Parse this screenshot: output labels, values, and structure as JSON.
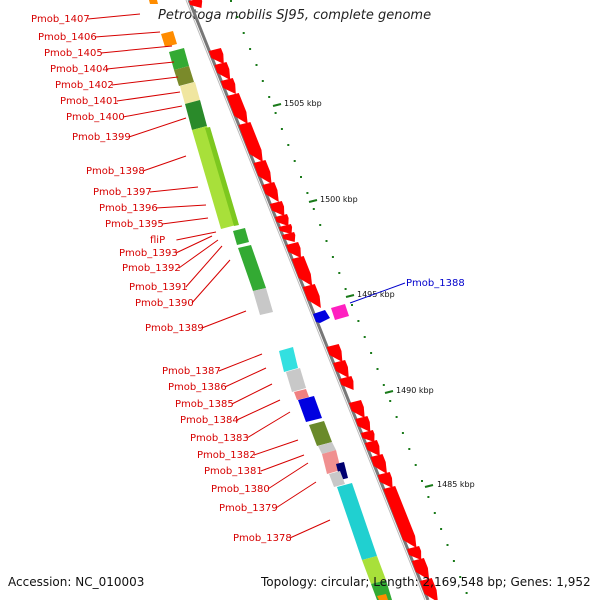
{
  "title": "Petrotoga mobilis SJ95, complete genome",
  "accession": "Accession: NC_010003",
  "topology": "Topology: circular; Length: 2,169,548 bp; Genes: 1,952",
  "scale_labels": [
    "1505 kbp",
    "1500 kbp",
    "1495 kbp",
    "1490 kbp",
    "1485 kbp"
  ],
  "gene_labels": [
    "Pmob_1407",
    "Pmob_1406",
    "Pmob_1405",
    "Pmob_1404",
    "Pmob_1402",
    "Pmob_1401",
    "Pmob_1400",
    "Pmob_1399",
    "Pmob_1398",
    "Pmob_1397",
    "Pmob_1396",
    "Pmob_1395",
    "fliP",
    "Pmob_1393",
    "Pmob_1392",
    "Pmob_1391",
    "Pmob_1390",
    "Pmob_1389",
    "Pmob_1387",
    "Pmob_1386",
    "Pmob_1385",
    "Pmob_1384",
    "Pmob_1383",
    "Pmob_1382",
    "Pmob_1381",
    "Pmob_1380",
    "Pmob_1379",
    "Pmob_1378"
  ],
  "highlight_label": "Pmob_1388",
  "colors": {
    "label_red": "#d60000",
    "label_blue": "#0000cc",
    "backbone": "#888888",
    "tick_green": "#1a7a1a",
    "cds_red": "#ff0000"
  }
}
